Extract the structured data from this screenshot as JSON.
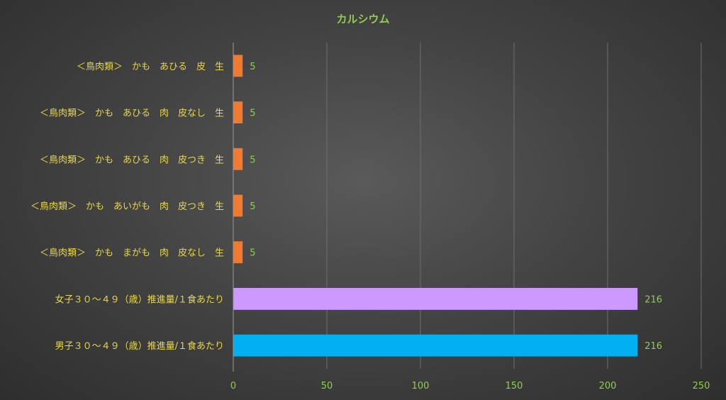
{
  "chart_data": {
    "type": "bar",
    "orientation": "horizontal",
    "title": "カルシウム",
    "categories": [
      "＜鳥肉類＞　かも　あひる　皮　生",
      "＜鳥肉類＞　かも　あひる　肉　皮なし　生",
      "＜鳥肉類＞　かも　あひる　肉　皮つき　生",
      "＜鳥肉類＞　かも　あいがも　肉　皮つき　生",
      "＜鳥肉類＞　かも　まがも　肉　皮なし　生",
      "女子３０～４９（歳）推進量/１食あたり",
      "男子３０～４９（歳）推進量/１食あたり"
    ],
    "values": [
      5,
      5,
      5,
      5,
      5,
      216,
      216
    ],
    "value_labels": [
      "5",
      "5",
      "5",
      "5",
      "5",
      "216",
      "216"
    ],
    "bar_colors": [
      "#f07a30",
      "#f07a30",
      "#f07a30",
      "#f07a30",
      "#f07a30",
      "#cc99ff",
      "#00b0f0"
    ],
    "xlim": [
      0,
      250
    ],
    "x_ticks": [
      0,
      50,
      100,
      150,
      200,
      250
    ],
    "x_tick_labels": [
      "0",
      "50",
      "100",
      "150",
      "200",
      "250"
    ],
    "grid": "vertical",
    "legend": "none"
  },
  "colors": {
    "title": "#8fce4f",
    "category_label": "#e8d84a",
    "value_label": "#8fce4f",
    "tick_label": "#8fce4f",
    "gridline": "#6e6e6e",
    "axis": "#9a9a9a"
  }
}
